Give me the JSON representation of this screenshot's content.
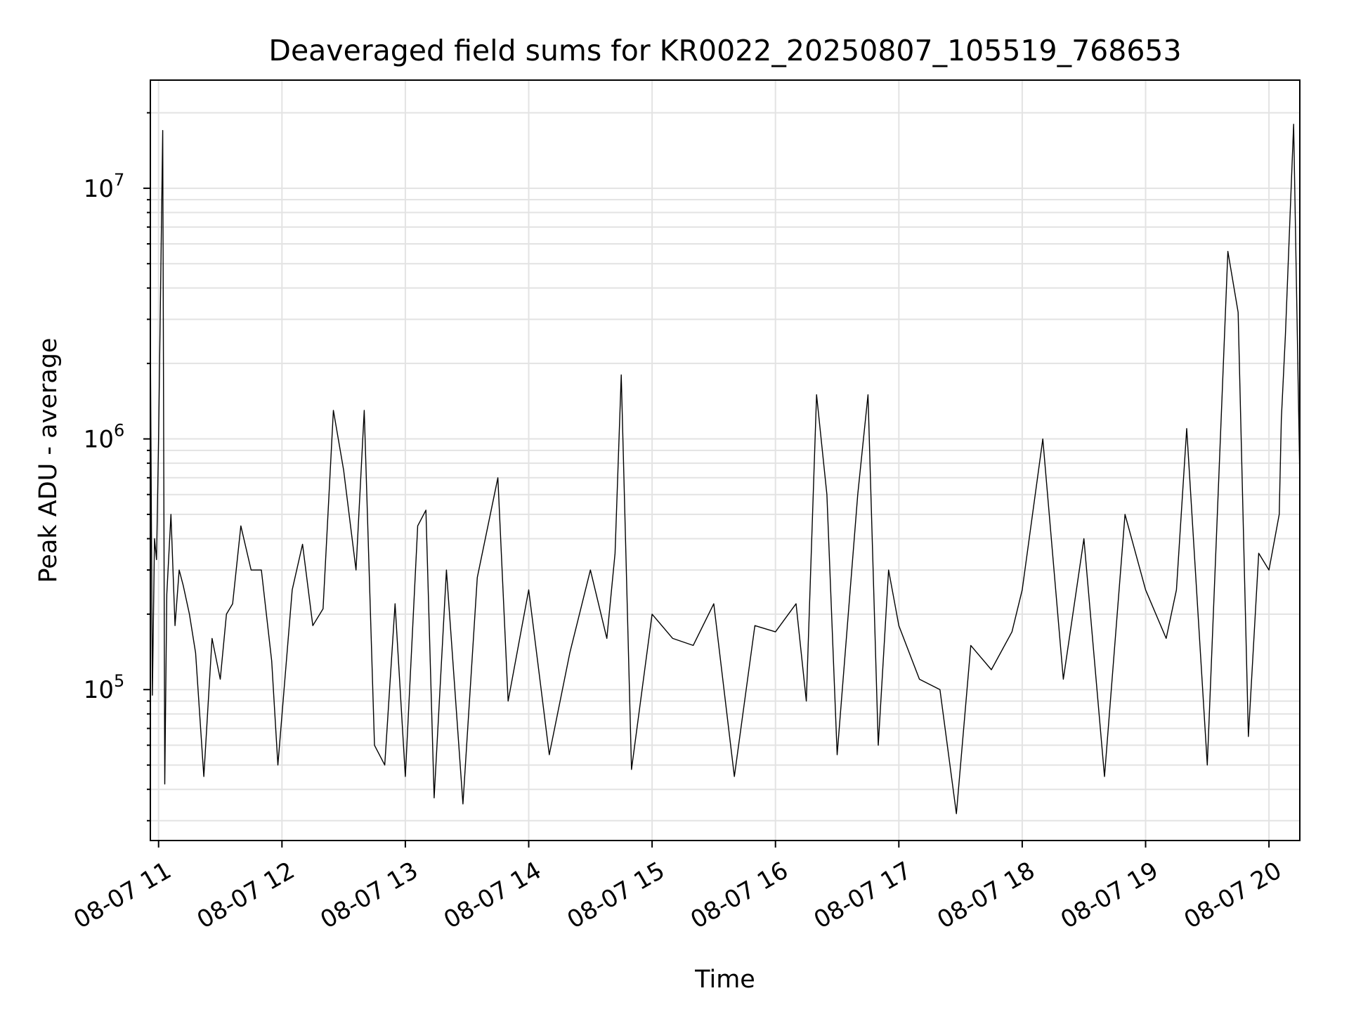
{
  "chart_data": {
    "type": "line",
    "title": "Deaveraged field sums for KR0022_20250807_105519_768653",
    "xlabel": "Time",
    "ylabel": "Peak ADU - average",
    "x_scale": "time",
    "y_scale": "log",
    "xlim": [
      "2025-08-07 10:56",
      "2025-08-07 20:15"
    ],
    "ylim": [
      25000,
      27000000
    ],
    "grid": "both-major-and-minor",
    "legend": "none",
    "line_color": "#000000",
    "x_ticks": [
      {
        "time": "2025-08-07 11:00",
        "label": "08-07 11"
      },
      {
        "time": "2025-08-07 12:00",
        "label": "08-07 12"
      },
      {
        "time": "2025-08-07 13:00",
        "label": "08-07 13"
      },
      {
        "time": "2025-08-07 14:00",
        "label": "08-07 14"
      },
      {
        "time": "2025-08-07 15:00",
        "label": "08-07 15"
      },
      {
        "time": "2025-08-07 16:00",
        "label": "08-07 16"
      },
      {
        "time": "2025-08-07 17:00",
        "label": "08-07 17"
      },
      {
        "time": "2025-08-07 18:00",
        "label": "08-07 18"
      },
      {
        "time": "2025-08-07 19:00",
        "label": "08-07 19"
      },
      {
        "time": "2025-08-07 20:00",
        "label": "08-07 20"
      }
    ],
    "y_ticks": [
      {
        "value": 100000,
        "base": "10",
        "exp": "5"
      },
      {
        "value": 1000000,
        "base": "10",
        "exp": "6"
      },
      {
        "value": 10000000,
        "base": "10",
        "exp": "7"
      }
    ],
    "series": [
      {
        "x": [
          "2025-08-07 10:56",
          "2025-08-07 10:57",
          "2025-08-07 10:58",
          "2025-08-07 10:59",
          "2025-08-07 11:00",
          "2025-08-07 11:02",
          "2025-08-07 11:03",
          "2025-08-07 11:04",
          "2025-08-07 11:06",
          "2025-08-07 11:08",
          "2025-08-07 11:10",
          "2025-08-07 11:12",
          "2025-08-07 11:15",
          "2025-08-07 11:18",
          "2025-08-07 11:22",
          "2025-08-07 11:26",
          "2025-08-07 11:30",
          "2025-08-07 11:33",
          "2025-08-07 11:36",
          "2025-08-07 11:40",
          "2025-08-07 11:45",
          "2025-08-07 11:50",
          "2025-08-07 11:55",
          "2025-08-07 11:58",
          "2025-08-07 12:05",
          "2025-08-07 12:10",
          "2025-08-07 12:15",
          "2025-08-07 12:20",
          "2025-08-07 12:25",
          "2025-08-07 12:30",
          "2025-08-07 12:36",
          "2025-08-07 12:40",
          "2025-08-07 12:45",
          "2025-08-07 12:50",
          "2025-08-07 12:55",
          "2025-08-07 13:00",
          "2025-08-07 13:06",
          "2025-08-07 13:10",
          "2025-08-07 13:14",
          "2025-08-07 13:20",
          "2025-08-07 13:28",
          "2025-08-07 13:35",
          "2025-08-07 13:45",
          "2025-08-07 13:50",
          "2025-08-07 14:00",
          "2025-08-07 14:10",
          "2025-08-07 14:20",
          "2025-08-07 14:30",
          "2025-08-07 14:38",
          "2025-08-07 14:42",
          "2025-08-07 14:45",
          "2025-08-07 14:50",
          "2025-08-07 15:00",
          "2025-08-07 15:10",
          "2025-08-07 15:20",
          "2025-08-07 15:30",
          "2025-08-07 15:40",
          "2025-08-07 15:50",
          "2025-08-07 16:00",
          "2025-08-07 16:10",
          "2025-08-07 16:15",
          "2025-08-07 16:20",
          "2025-08-07 16:25",
          "2025-08-07 16:30",
          "2025-08-07 16:40",
          "2025-08-07 16:45",
          "2025-08-07 16:50",
          "2025-08-07 16:55",
          "2025-08-07 17:00",
          "2025-08-07 17:10",
          "2025-08-07 17:20",
          "2025-08-07 17:28",
          "2025-08-07 17:35",
          "2025-08-07 17:45",
          "2025-08-07 17:55",
          "2025-08-07 18:00",
          "2025-08-07 18:10",
          "2025-08-07 18:20",
          "2025-08-07 18:30",
          "2025-08-07 18:40",
          "2025-08-07 18:50",
          "2025-08-07 19:00",
          "2025-08-07 19:10",
          "2025-08-07 19:15",
          "2025-08-07 19:20",
          "2025-08-07 19:30",
          "2025-08-07 19:40",
          "2025-08-07 19:45",
          "2025-08-07 19:50",
          "2025-08-07 19:55",
          "2025-08-07 20:00",
          "2025-08-07 20:05",
          "2025-08-07 20:06",
          "2025-08-07 20:08",
          "2025-08-07 20:12",
          "2025-08-07 20:15"
        ],
        "y": [
          2600000,
          95000,
          400000,
          330000,
          1000000,
          17000000,
          42000,
          240000,
          500000,
          180000,
          300000,
          260000,
          200000,
          140000,
          45000,
          160000,
          110000,
          200000,
          220000,
          450000,
          300000,
          300000,
          130000,
          50000,
          250000,
          380000,
          180000,
          210000,
          1300000,
          750000,
          300000,
          1300000,
          60000,
          50000,
          220000,
          45000,
          450000,
          520000,
          37000,
          300000,
          35000,
          280000,
          700000,
          90000,
          250000,
          55000,
          140000,
          300000,
          160000,
          350000,
          1800000,
          48000,
          200000,
          160000,
          150000,
          220000,
          45000,
          180000,
          170000,
          220000,
          90000,
          1500000,
          600000,
          55000,
          600000,
          1500000,
          60000,
          300000,
          180000,
          110000,
          100000,
          32000,
          150000,
          120000,
          170000,
          250000,
          1000000,
          110000,
          400000,
          45000,
          500000,
          250000,
          160000,
          250000,
          1100000,
          50000,
          5600000,
          3200000,
          65000,
          350000,
          300000,
          500000,
          1200000,
          2600000,
          18000000,
          700000
        ]
      }
    ]
  }
}
